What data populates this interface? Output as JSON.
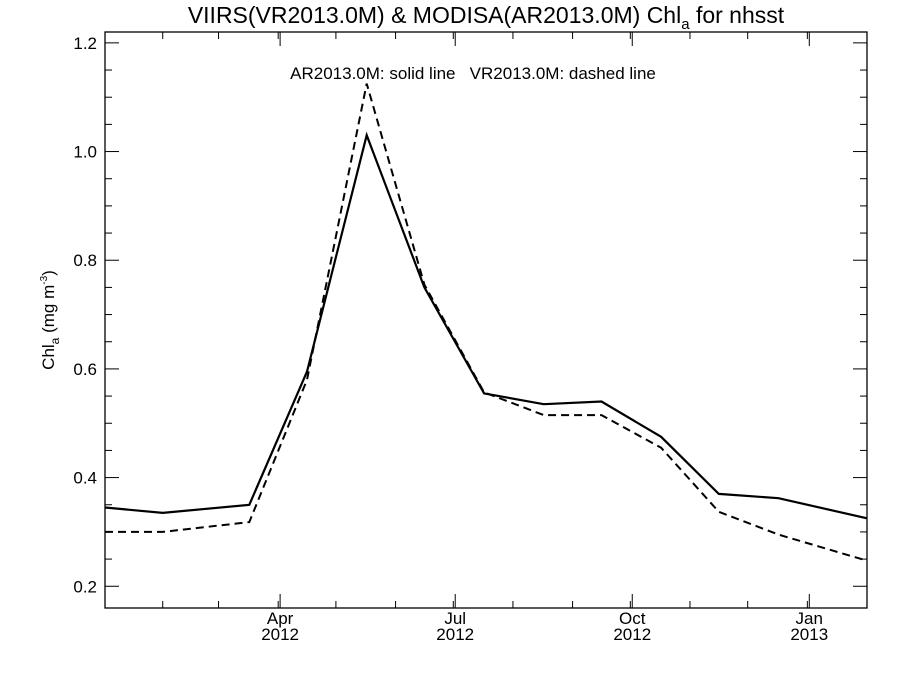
{
  "chart_data": {
    "type": "line",
    "title": {
      "main": "VIIRS(VR2013.0M) & MODISA(AR2013.0M)  Chl",
      "sub": "a",
      "tail": " for nhsst"
    },
    "annotation": "AR2013.0M: solid line   VR2013.0M: dashed line",
    "ylabel": {
      "main": "Chl",
      "sub": "a",
      "units": " (mg m",
      "sup": "-3",
      "close": ")"
    },
    "xlim": [
      "2012-01-01",
      "2013-01-31"
    ],
    "ylim": [
      0.16,
      1.22
    ],
    "y_ticks": [
      {
        "value": 0.2,
        "label": "0.2"
      },
      {
        "value": 0.4,
        "label": "0.4"
      },
      {
        "value": 0.6,
        "label": "0.6"
      },
      {
        "value": 0.8,
        "label": "0.8"
      },
      {
        "value": 1.0,
        "label": "1.0"
      },
      {
        "value": 1.2,
        "label": "1.2"
      }
    ],
    "y_minor_step": 0.05,
    "x_ticks": [
      {
        "value": "2012-04-01",
        "label": "Apr",
        "year": "2012"
      },
      {
        "value": "2012-07-01",
        "label": "Jul",
        "year": "2012"
      },
      {
        "value": "2012-10-01",
        "label": "Oct",
        "year": "2012"
      },
      {
        "value": "2013-01-01",
        "label": "Jan",
        "year": "2013"
      }
    ],
    "x_minor_ticks": [
      "2012-01-31",
      "2012-02-29",
      "2012-03-31",
      "2012-04-30",
      "2012-05-31",
      "2012-06-30",
      "2012-07-31",
      "2012-08-31",
      "2012-09-30",
      "2012-10-31",
      "2012-11-30",
      "2012-12-31"
    ],
    "grid": false,
    "legend": "annotation text at top-center",
    "series": [
      {
        "name": "AR2013.0M",
        "style": "solid",
        "color": "#000000",
        "x": [
          "2012-01-01",
          "2012-01-31",
          "2012-03-16",
          "2012-04-15",
          "2012-05-16",
          "2012-06-15",
          "2012-07-16",
          "2012-08-16",
          "2012-09-15",
          "2012-10-16",
          "2012-11-15",
          "2012-12-16",
          "2013-01-31"
        ],
        "y": [
          0.345,
          0.335,
          0.35,
          0.595,
          1.03,
          0.75,
          0.555,
          0.535,
          0.54,
          0.475,
          0.37,
          0.362,
          0.325
        ]
      },
      {
        "name": "VR2013.0M",
        "style": "dashed",
        "color": "#000000",
        "x": [
          "2012-01-01",
          "2012-01-31",
          "2012-03-16",
          "2012-04-15",
          "2012-05-16",
          "2012-06-15",
          "2012-07-16",
          "2012-08-16",
          "2012-09-15",
          "2012-10-16",
          "2012-11-15",
          "2012-12-16",
          "2013-01-31"
        ],
        "y": [
          0.3,
          0.3,
          0.318,
          0.58,
          1.125,
          0.755,
          0.557,
          0.515,
          0.515,
          0.455,
          0.337,
          0.295,
          0.247
        ]
      }
    ]
  }
}
